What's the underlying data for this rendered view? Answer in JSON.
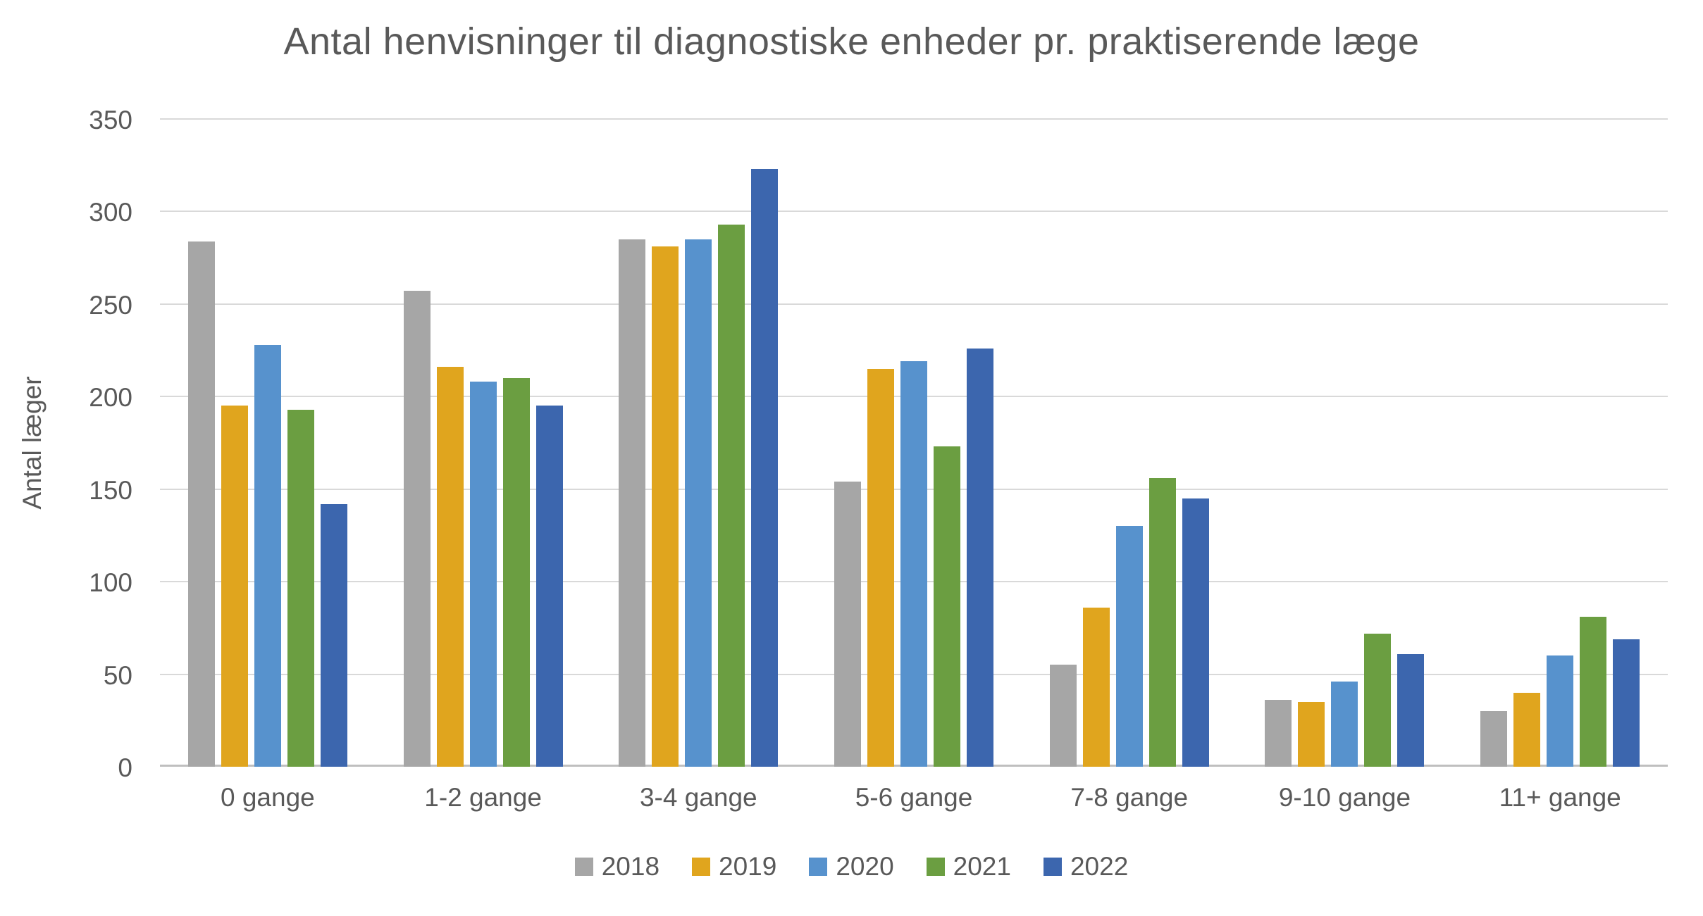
{
  "chart_data": {
    "type": "bar",
    "title": "Antal henvisninger til diagnostiske enheder pr. praktiserende læge",
    "xlabel": "",
    "ylabel": "Antal læger",
    "ylim": [
      0,
      350
    ],
    "yticks": [
      0,
      50,
      100,
      150,
      200,
      250,
      300,
      350
    ],
    "grid": true,
    "legend_position": "bottom",
    "categories": [
      "0 gange",
      "1-2 gange",
      "3-4 gange",
      "5-6 gange",
      "7-8 gange",
      "9-10 gange",
      "11+ gange"
    ],
    "series": [
      {
        "name": "2018",
        "color": "#A6A6A6",
        "values": [
          284,
          257,
          285,
          154,
          55,
          36,
          30
        ]
      },
      {
        "name": "2019",
        "color": "#E0A51E",
        "values": [
          195,
          216,
          281,
          215,
          86,
          35,
          40
        ]
      },
      {
        "name": "2020",
        "color": "#5792CD",
        "values": [
          228,
          208,
          285,
          219,
          130,
          46,
          60
        ]
      },
      {
        "name": "2021",
        "color": "#6B9E41",
        "values": [
          193,
          210,
          293,
          173,
          156,
          72,
          81
        ]
      },
      {
        "name": "2022",
        "color": "#3C66AE",
        "values": [
          142,
          195,
          323,
          226,
          145,
          61,
          69
        ]
      }
    ],
    "colors": {
      "text": "#595959",
      "gridline": "#D9D9D9",
      "axis_line": "#BFBFBF",
      "background": "#FFFFFF"
    }
  }
}
